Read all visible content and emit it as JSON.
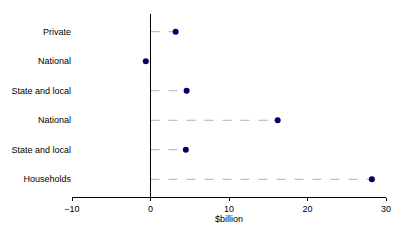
{
  "chart_data": {
    "type": "dot",
    "orientation": "horizontal",
    "categories": [
      "Private",
      "National",
      "State and local",
      "National",
      "State and local",
      "Households"
    ],
    "values": [
      3.2,
      -0.6,
      4.6,
      16.2,
      4.5,
      28.2
    ],
    "color": "#000066",
    "marker": "circle",
    "line_style": "dashed",
    "x_label": "$billion",
    "xlim": [
      -10,
      30
    ],
    "xticks": [
      -10,
      0,
      10,
      20,
      30
    ],
    "grid": false
  }
}
